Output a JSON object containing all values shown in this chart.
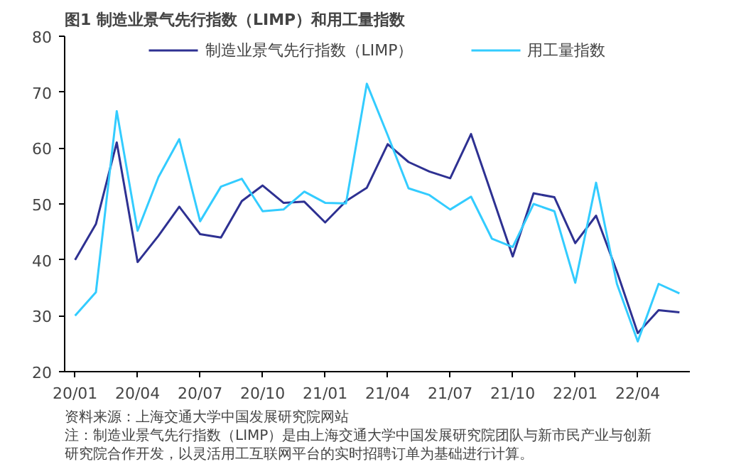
{
  "chart_data": {
    "type": "line",
    "title": "图1  制造业景气先行指数（LIMP）和用工量指数",
    "categories": [
      "20/01",
      null,
      null,
      "20/04",
      null,
      null,
      "20/07",
      null,
      null,
      "20/10",
      null,
      null,
      "21/01",
      null,
      null,
      "21/04",
      null,
      null,
      "21/07",
      null,
      null,
      "21/10",
      null,
      null,
      "22/01",
      null,
      null,
      "22/04",
      null,
      null
    ],
    "series": [
      {
        "name": "制造业景气先行指数（LIMP）",
        "color": "#2e3192",
        "values": [
          40.0,
          46.4,
          61.0,
          39.6,
          44.3,
          49.5,
          44.6,
          44.0,
          50.5,
          53.3,
          50.2,
          50.4,
          46.7,
          50.5,
          52.9,
          60.7,
          57.5,
          55.8,
          54.6,
          62.5,
          51.6,
          40.6,
          51.9,
          51.2,
          43.0,
          47.9,
          37.9,
          26.9,
          31.0,
          30.6
        ]
      },
      {
        "name": "用工量指数",
        "color": "#33ccff",
        "values": [
          30.0,
          34.2,
          66.6,
          45.2,
          54.8,
          61.6,
          46.9,
          53.1,
          54.5,
          48.7,
          49.0,
          52.2,
          50.2,
          50.1,
          71.5,
          62.3,
          52.8,
          51.6,
          49.0,
          51.3,
          43.8,
          42.3,
          50.0,
          48.7,
          35.9,
          53.8,
          35.7,
          25.4,
          35.7,
          34.0
        ]
      }
    ],
    "ylim": [
      20,
      80
    ],
    "yticks": [
      20,
      30,
      40,
      50,
      60,
      70,
      80
    ],
    "grid": false,
    "legend": "top",
    "marker": "none",
    "line_style": "solid",
    "annotations": [
      "资料来源：上海交通大学中国发展研究院网站",
      "注：制造业景气先行指数（LIMP）是由上海交通大学中国发展研究院团队与新市民产业与创新",
      "研究院合作开发，以灵活用工互联网平台的实时招聘订单为基础进行计算。"
    ]
  }
}
